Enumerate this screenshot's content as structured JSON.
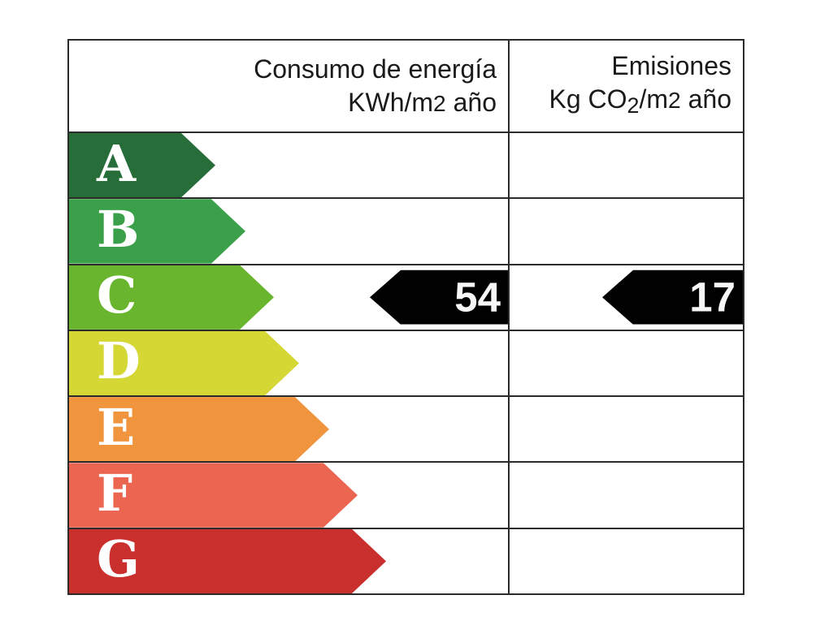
{
  "header": {
    "left_line1": "Consumo de energía",
    "left_line2_a": "KWh/m",
    "left_line2_b": "2",
    "left_line2_c": " año",
    "right_line1": "Emisiones",
    "right_line2_a": "Kg CO",
    "right_line2_b": "2",
    "right_line2_c": "/m",
    "right_line2_d": "2",
    "right_line2_e": " año"
  },
  "scale": {
    "rows": [
      {
        "letter": "A",
        "color": "#266d39",
        "arrow_width": 180
      },
      {
        "letter": "B",
        "color": "#3aa04a",
        "arrow_width": 217
      },
      {
        "letter": "C",
        "color": "#69b52e",
        "arrow_width": 252
      },
      {
        "letter": "D",
        "color": "#d5d735",
        "arrow_width": 283
      },
      {
        "letter": "E",
        "color": "#f0943e",
        "arrow_width": 320
      },
      {
        "letter": "F",
        "color": "#eb6550",
        "arrow_width": 355
      },
      {
        "letter": "G",
        "color": "#c92f2d",
        "arrow_width": 390
      }
    ]
  },
  "indicators": {
    "consumption": {
      "rating": "C",
      "value": "54",
      "arrow_width": 170
    },
    "emissions": {
      "rating": "C",
      "value": "17",
      "arrow_width": 173
    }
  },
  "colors": {
    "indicator": "#010101",
    "border": "#2b2b2b",
    "letter": "#ffffff"
  },
  "chart_data": {
    "type": "bar",
    "title": "",
    "categories": [
      "A",
      "B",
      "C",
      "D",
      "E",
      "F",
      "G"
    ],
    "category_colors": [
      "#266d39",
      "#3aa04a",
      "#69b52e",
      "#d5d735",
      "#f0943e",
      "#eb6550",
      "#c92f2d"
    ],
    "columns": [
      "Consumo de energía KWh/m2 año",
      "Emisiones Kg CO2/m2 año"
    ],
    "series": [
      {
        "name": "Consumo de energía KWh/m2 año",
        "rating": "C",
        "value": 54
      },
      {
        "name": "Emisiones Kg CO2/m2 año",
        "rating": "C",
        "value": 17
      }
    ],
    "legend_position": "none",
    "grid": true
  }
}
